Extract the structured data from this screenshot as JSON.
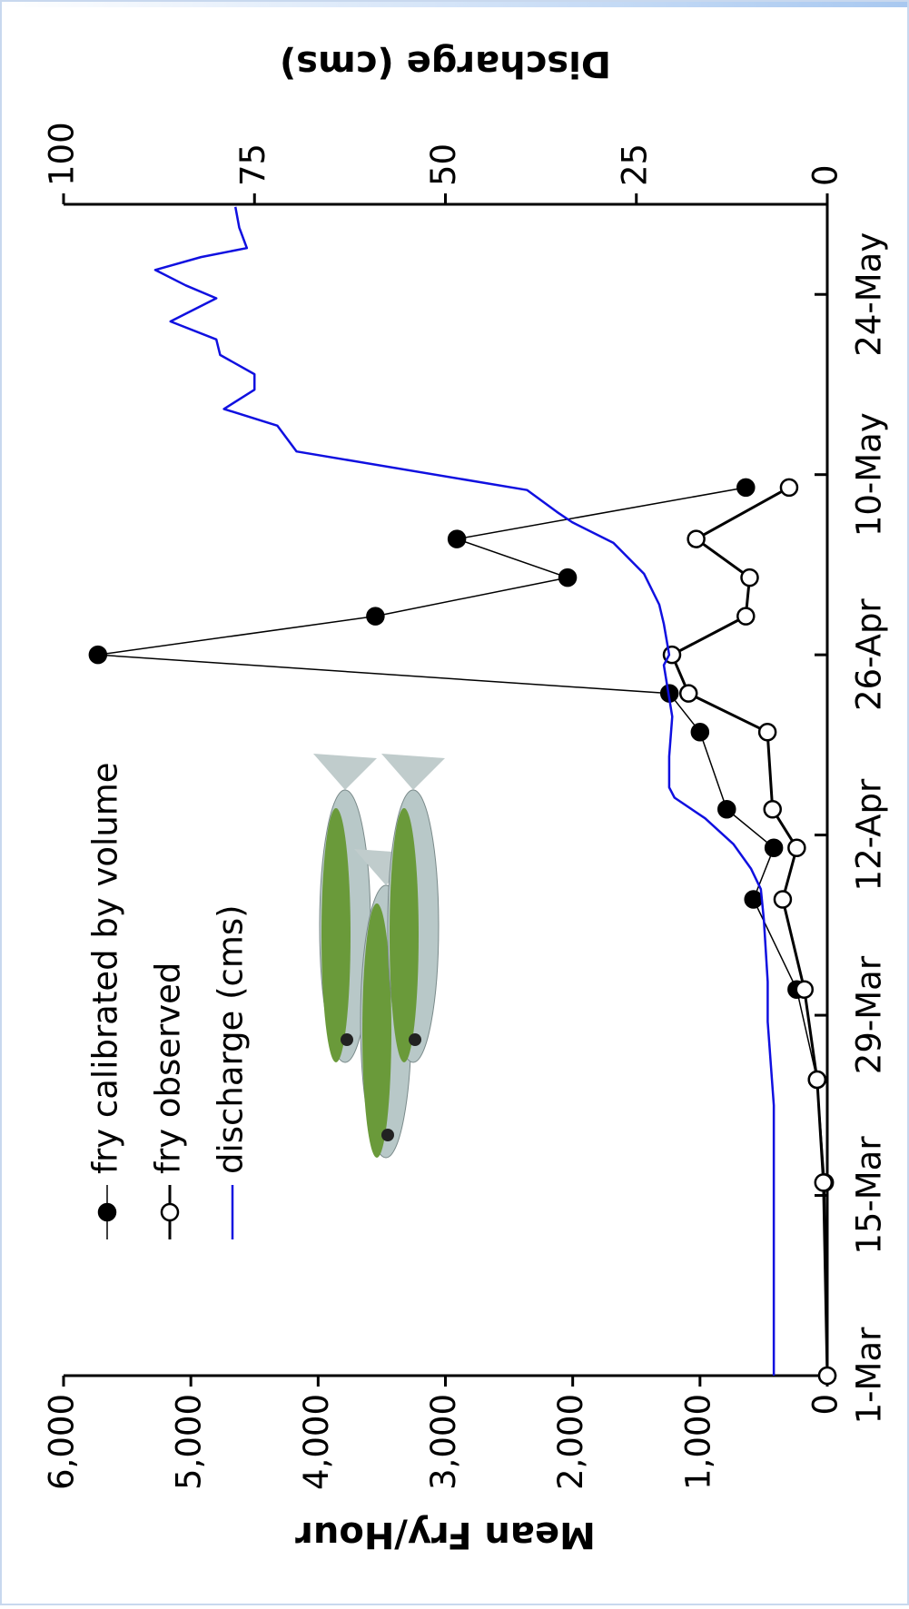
{
  "chart_data": {
    "type": "line",
    "rotation": -90,
    "xlabel": null,
    "ylabel": "Mean Fry/Hour",
    "y2label": "Discharge (cms)",
    "xlim": [
      0,
      91
    ],
    "xticks": [
      {
        "value": 0,
        "label": "1-Mar"
      },
      {
        "value": 14,
        "label": "15-Mar"
      },
      {
        "value": 28,
        "label": "29-Mar"
      },
      {
        "value": 42,
        "label": "12-Apr"
      },
      {
        "value": 56,
        "label": "26-Apr"
      },
      {
        "value": 70,
        "label": "10-May"
      },
      {
        "value": 84,
        "label": "24-May"
      }
    ],
    "ylim": [
      0,
      6000
    ],
    "yticks": [
      0,
      {
        "value": 1000,
        "label": "1,000"
      },
      {
        "value": 2000,
        "label": "2,000"
      },
      {
        "value": 3000,
        "label": "3,000"
      },
      {
        "value": 4000,
        "label": "4,000"
      },
      {
        "value": 5000,
        "label": "5,000"
      },
      {
        "value": 6000,
        "label": "6,000"
      }
    ],
    "y2lim": [
      0,
      100
    ],
    "y2ticks": [
      0,
      25,
      50,
      75,
      100
    ],
    "legend": "upper left",
    "series": [
      {
        "name": "fry calibrated by volume",
        "color": "#000000",
        "marker_fill": "#000000",
        "line_width": 1.5,
        "x": [
          0,
          15,
          23,
          30,
          37,
          41,
          44,
          50,
          53,
          56,
          59,
          62,
          65,
          69
        ],
        "values": [
          0,
          20,
          80,
          240,
          580,
          420,
          790,
          1000,
          1240,
          5730,
          3550,
          2040,
          2910,
          640
        ]
      },
      {
        "name": "fry observed",
        "color": "#000000",
        "marker_fill": "#ffffff",
        "line_width": 3,
        "x": [
          0,
          15,
          23,
          30,
          37,
          41,
          44,
          50,
          53,
          56,
          59,
          62,
          65,
          69
        ],
        "values": [
          0,
          30,
          80,
          180,
          350,
          240,
          430,
          470,
          1090,
          1220,
          640,
          610,
          1030,
          300
        ]
      },
      {
        "name": "discharge (cms)",
        "color": "#1010e0",
        "axis": "y2",
        "line_width": 2.5,
        "x": [
          0,
          21,
          27.5,
          30.6,
          35.4,
          37.8,
          39.4,
          41.3,
          43.3,
          44.9,
          45.7,
          48.1,
          51.2,
          55.2,
          56,
          58.4,
          59.9,
          62.3,
          64.7,
          66.3,
          67.1,
          68.8,
          71.8,
          73.8,
          75.1,
          76.6,
          77.8,
          79.3,
          80.5,
          81.9,
          83.7,
          84.7,
          85.9,
          86.9,
          87.6,
          89.2,
          90.8
        ],
        "values": [
          7,
          7,
          7.8,
          7.8,
          8.3,
          8.7,
          10,
          12.3,
          16,
          20,
          20.7,
          20.7,
          20.3,
          21.4,
          20.7,
          21.4,
          22,
          24,
          28,
          33.4,
          35.4,
          39.3,
          69.5,
          72,
          79,
          75,
          75,
          79.5,
          80,
          86,
          80,
          84,
          88,
          82,
          76,
          77,
          77.5
        ]
      }
    ]
  }
}
